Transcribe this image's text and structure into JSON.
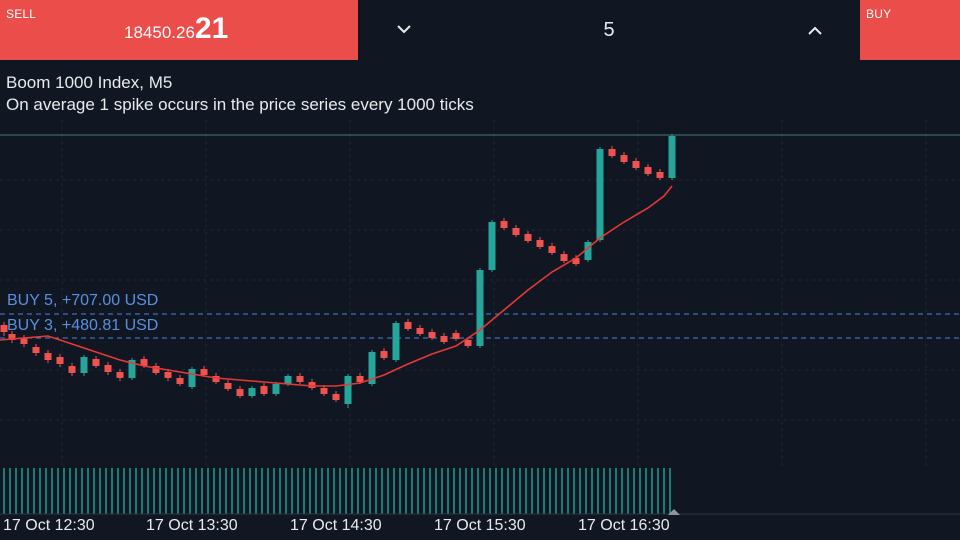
{
  "trade_panel": {
    "sell_label": "SELL",
    "sell_price_main": "18450.26",
    "sell_price_big": "21",
    "lot_size": "5",
    "buy_label": "BUY"
  },
  "chart": {
    "symbol_title": "Boom 1000 Index, M5",
    "symbol_description": "On average 1 spike occurs in the price series every 1000 ticks",
    "positions": [
      {
        "label": "BUY 5,  +707.00 USD"
      },
      {
        "label": "BUY 3,  +480.81 USD"
      }
    ],
    "time_labels": [
      "17 Oct 12:30",
      "17 Oct 13:30",
      "17 Oct 14:30",
      "17 Oct 15:30",
      "17 Oct 16:30"
    ]
  },
  "colors": {
    "background": "#111722",
    "bull_candle": "#26a69a",
    "bear_candle": "#ef5350",
    "moving_average": "#e53935",
    "position_line": "#4a80d8",
    "sell_buy_buttons": "#eb4d4b"
  }
}
